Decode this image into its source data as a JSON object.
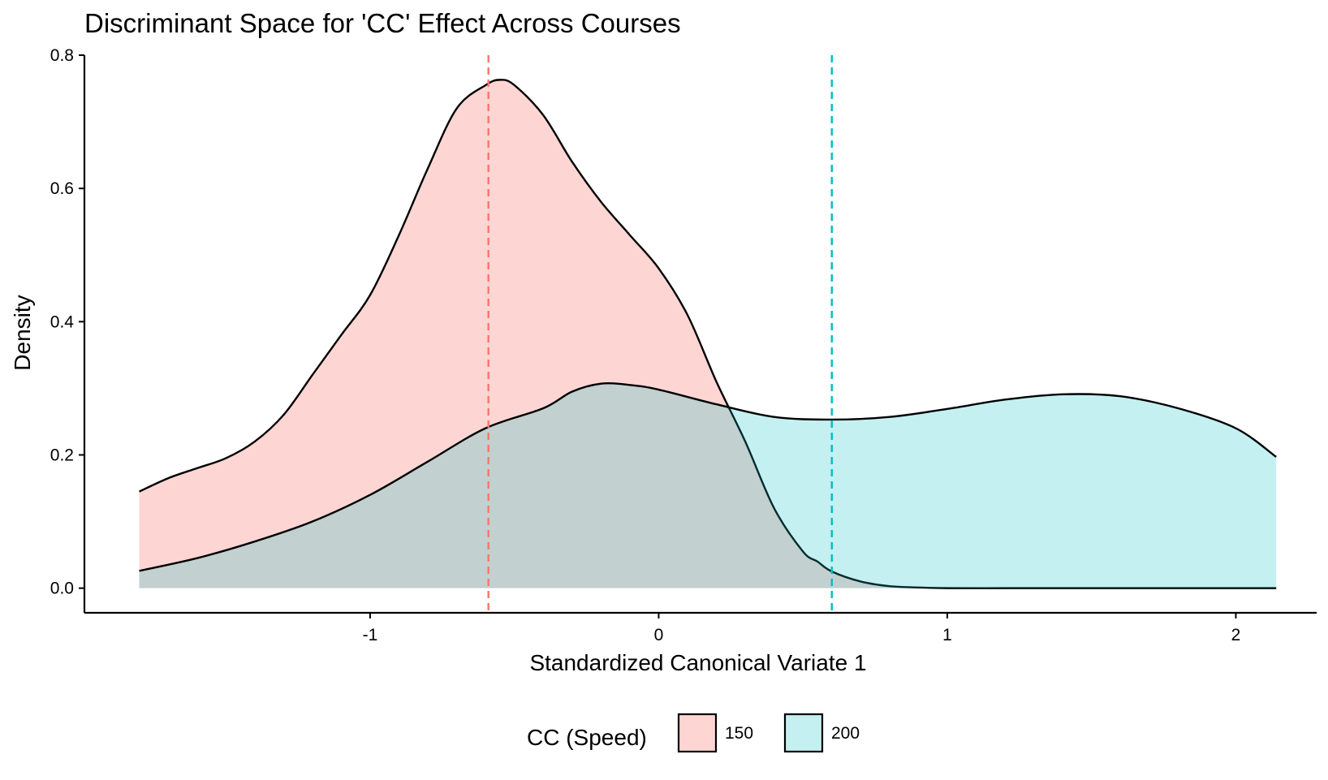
{
  "chart_data": {
    "type": "area",
    "title": "Discriminant Space for 'CC' Effect Across Courses",
    "xlabel": "Standardized Canonical Variate 1",
    "ylabel": "Density",
    "xlim": [
      -1.99,
      2.28
    ],
    "ylim": [
      -0.037,
      0.8
    ],
    "xticks": [
      -1,
      0,
      1,
      2
    ],
    "xtick_labels": [
      "-1",
      "0",
      "1",
      "2"
    ],
    "yticks": [
      0.0,
      0.2,
      0.4,
      0.6,
      0.8
    ],
    "ytick_labels": [
      "0.0",
      "0.2",
      "0.4",
      "0.6",
      "0.8"
    ],
    "legend": {
      "title": "CC (Speed)",
      "position": "bottom"
    },
    "series": [
      {
        "name": "150",
        "fill": "#F8766D",
        "fill_opacity": 0.3,
        "mean": -0.59,
        "mean_line_color": "#F8766D",
        "x": [
          -1.8,
          -1.7,
          -1.6,
          -1.5,
          -1.4,
          -1.3,
          -1.2,
          -1.1,
          -1.0,
          -0.9,
          -0.8,
          -0.7,
          -0.6,
          -0.55,
          -0.5,
          -0.4,
          -0.3,
          -0.2,
          -0.1,
          0.0,
          0.1,
          0.2,
          0.3,
          0.4,
          0.5,
          0.55,
          0.6,
          0.7,
          0.8,
          0.9,
          1.0,
          1.2,
          1.4,
          1.6,
          1.8,
          2.0,
          2.1,
          2.14
        ],
        "y": [
          0.145,
          0.165,
          0.18,
          0.195,
          0.22,
          0.26,
          0.32,
          0.38,
          0.44,
          0.53,
          0.63,
          0.72,
          0.755,
          0.763,
          0.755,
          0.71,
          0.64,
          0.58,
          0.53,
          0.48,
          0.41,
          0.31,
          0.22,
          0.12,
          0.055,
          0.04,
          0.025,
          0.01,
          0.003,
          0.001,
          0.0,
          0.0,
          0.0,
          0.0,
          0.0,
          0.0,
          0.0,
          0.0
        ]
      },
      {
        "name": "200",
        "fill": "#00BFC4",
        "fill_opacity": 0.23,
        "mean": 0.6,
        "mean_line_color": "#00BFC4",
        "x": [
          -1.8,
          -1.6,
          -1.4,
          -1.2,
          -1.0,
          -0.8,
          -0.6,
          -0.4,
          -0.3,
          -0.2,
          -0.1,
          0.0,
          0.2,
          0.4,
          0.6,
          0.8,
          1.0,
          1.2,
          1.4,
          1.6,
          1.8,
          2.0,
          2.14
        ],
        "y": [
          0.026,
          0.045,
          0.07,
          0.1,
          0.14,
          0.19,
          0.24,
          0.27,
          0.295,
          0.307,
          0.305,
          0.298,
          0.276,
          0.257,
          0.253,
          0.257,
          0.269,
          0.283,
          0.291,
          0.288,
          0.27,
          0.24,
          0.197
        ]
      }
    ]
  }
}
